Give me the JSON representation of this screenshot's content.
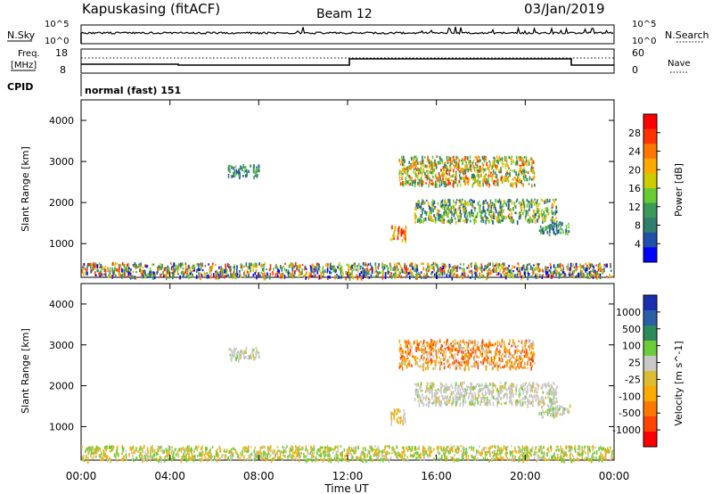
{
  "header": {
    "station": "Kapuskasing (fitACF)",
    "beam": "Beam 12",
    "date": "03/Jan/2019"
  },
  "status_panels": {
    "nsky_label": "N.Sky",
    "nsearch_label": "N.Search",
    "nsky_ticks": [
      "10^5",
      "10^0"
    ],
    "nsearch_ticks": [
      "10^5",
      "10^0"
    ],
    "freq_label": "Freq.",
    "freq_unit": "[MHz]",
    "freq_ticks": [
      "18",
      "8"
    ],
    "nave_ticks": [
      "60",
      "0"
    ],
    "nave_label": "Nave",
    "cpid_label": "CPID",
    "cpid_value": "normal (fast) 151"
  },
  "colors": {
    "power_scale": [
      "#0000ff",
      "#1f4fa8",
      "#2f7f6f",
      "#3a9a5a",
      "#66cc33",
      "#cccc00",
      "#ffaa00",
      "#ff7700",
      "#ff3300",
      "#ff0000"
    ],
    "velocity_scale": [
      "#1a2fb0",
      "#2b5fa8",
      "#2d8a5a",
      "#6ccc3a",
      "#c8c8c8",
      "#ddbb33",
      "#ffaa00",
      "#ff7700",
      "#ff4400",
      "#ff0000"
    ],
    "line": "#000000"
  },
  "chart_data": [
    {
      "type": "heatmap",
      "name": "power",
      "ylabel": "Slant Range [km]",
      "yticks": [
        "4000",
        "3000",
        "2000",
        "1000"
      ],
      "ylim": [
        180,
        4500
      ],
      "colorbar_label": "Power [dB]",
      "colorbar_ticks": [
        "28",
        "24",
        "20",
        "16",
        "12",
        "8",
        "4"
      ],
      "regions": [
        {
          "t": [
            0.0,
            23.9
          ],
          "r": [
            200,
            550
          ],
          "dominant": "mixed"
        },
        {
          "t": [
            6.6,
            8.0
          ],
          "r": [
            2650,
            2950
          ],
          "dominant": "blue-green"
        },
        {
          "t": [
            13.9,
            14.6
          ],
          "r": [
            1100,
            1450
          ],
          "dominant": "orange-red"
        },
        {
          "t": [
            14.3,
            20.4
          ],
          "r": [
            2450,
            3150
          ],
          "dominant": "orange-yellow"
        },
        {
          "t": [
            15.0,
            21.4
          ],
          "r": [
            1550,
            2100
          ],
          "dominant": "green-yellow"
        },
        {
          "t": [
            20.6,
            22.0
          ],
          "r": [
            1250,
            1550
          ],
          "dominant": "green"
        }
      ]
    },
    {
      "type": "heatmap",
      "name": "velocity",
      "ylabel": "Slant Range [km]",
      "yticks": [
        "4000",
        "3000",
        "2000",
        "1000"
      ],
      "ylim": [
        180,
        4500
      ],
      "colorbar_label": "Velocity [m s^-1]",
      "colorbar_ticks": [
        "1000",
        "500",
        "100",
        "25",
        "-25",
        "-100",
        "-500",
        "-1000"
      ],
      "xticks": [
        "00:00",
        "04:00",
        "08:00",
        "12:00",
        "16:00",
        "20:00",
        "00:00"
      ],
      "xlabel": "Time UT",
      "xlim": [
        0,
        24
      ],
      "regions": [
        {
          "t": [
            0.0,
            23.9
          ],
          "r": [
            200,
            550
          ],
          "dominant": "green-yellow"
        },
        {
          "t": [
            6.6,
            8.0
          ],
          "r": [
            2650,
            2950
          ],
          "dominant": "gray"
        },
        {
          "t": [
            13.9,
            14.6
          ],
          "r": [
            1100,
            1450
          ],
          "dominant": "yellow"
        },
        {
          "t": [
            14.3,
            20.4
          ],
          "r": [
            2450,
            3150
          ],
          "dominant": "orange"
        },
        {
          "t": [
            15.0,
            21.4
          ],
          "r": [
            1550,
            2100
          ],
          "dominant": "gray"
        },
        {
          "t": [
            20.6,
            22.0
          ],
          "r": [
            1250,
            1550
          ],
          "dominant": "gray"
        }
      ]
    }
  ]
}
